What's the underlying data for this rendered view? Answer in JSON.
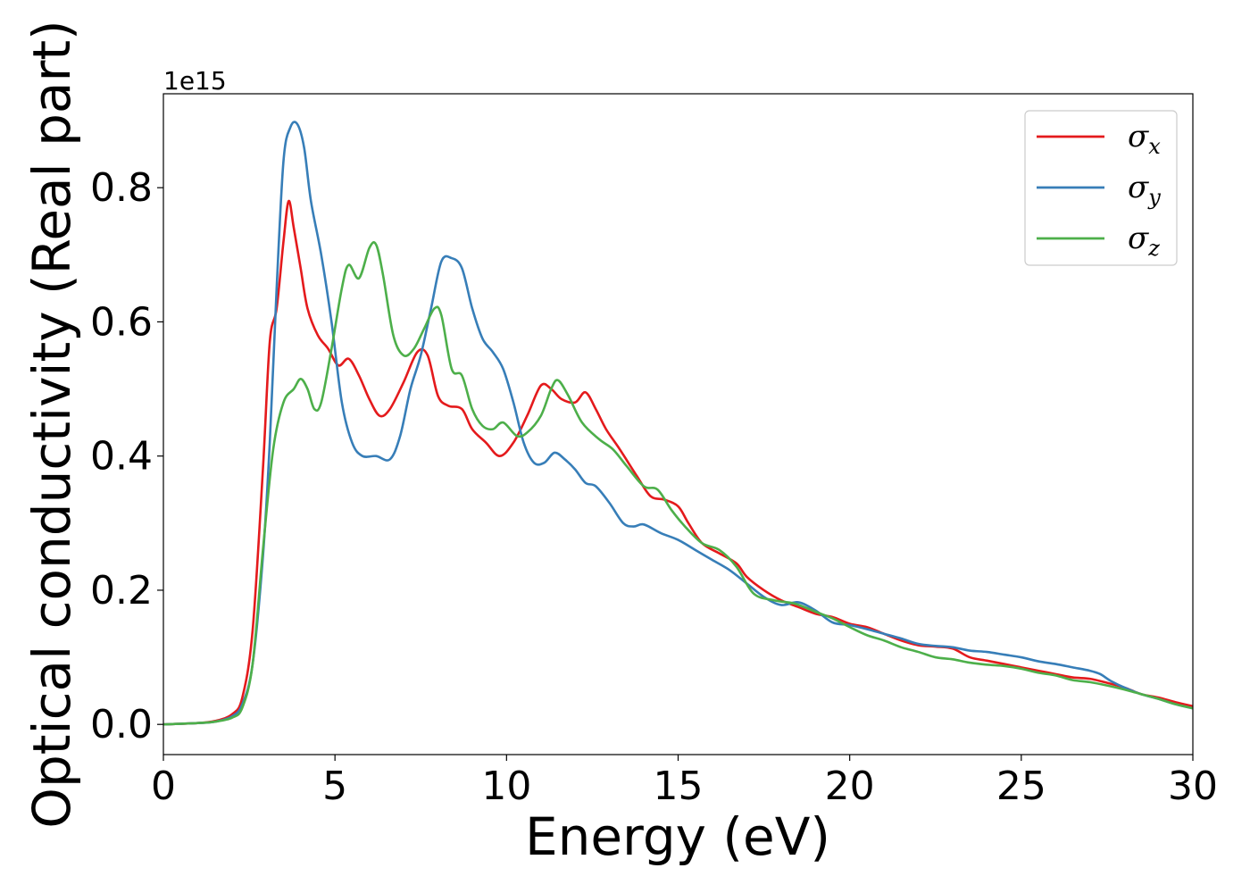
{
  "chart_data": {
    "type": "line",
    "xlabel": "Energy (eV)",
    "ylabel": "Optical conductivity (Real part)",
    "y_offset_label": "1e15",
    "xlim": [
      0,
      30
    ],
    "ylim": [
      -0.045,
      0.94
    ],
    "x_ticks": [
      0,
      5,
      10,
      15,
      20,
      25,
      30
    ],
    "y_ticks": [
      0.0,
      0.2,
      0.4,
      0.6,
      0.8
    ],
    "y_tick_labels": [
      "0.0",
      "0.2",
      "0.4",
      "0.6",
      "0.8"
    ],
    "grid": false,
    "legend_position": "top-right",
    "series": [
      {
        "name": "σ",
        "subscript": "x",
        "color": "#e41a1c",
        "points": [
          [
            0,
            0
          ],
          [
            1,
            0.002
          ],
          [
            1.5,
            0.005
          ],
          [
            2,
            0.015
          ],
          [
            2.3,
            0.04
          ],
          [
            2.6,
            0.14
          ],
          [
            2.9,
            0.38
          ],
          [
            3.1,
            0.57
          ],
          [
            3.3,
            0.62
          ],
          [
            3.5,
            0.72
          ],
          [
            3.65,
            0.78
          ],
          [
            3.8,
            0.74
          ],
          [
            4,
            0.68
          ],
          [
            4.2,
            0.62
          ],
          [
            4.5,
            0.58
          ],
          [
            4.8,
            0.56
          ],
          [
            5.1,
            0.535
          ],
          [
            5.4,
            0.545
          ],
          [
            5.7,
            0.52
          ],
          [
            6,
            0.485
          ],
          [
            6.3,
            0.46
          ],
          [
            6.6,
            0.47
          ],
          [
            7,
            0.51
          ],
          [
            7.4,
            0.555
          ],
          [
            7.7,
            0.55
          ],
          [
            8,
            0.49
          ],
          [
            8.3,
            0.475
          ],
          [
            8.7,
            0.47
          ],
          [
            9,
            0.44
          ],
          [
            9.4,
            0.42
          ],
          [
            9.8,
            0.4
          ],
          [
            10.2,
            0.42
          ],
          [
            10.6,
            0.46
          ],
          [
            11,
            0.505
          ],
          [
            11.3,
            0.5
          ],
          [
            11.6,
            0.485
          ],
          [
            12,
            0.48
          ],
          [
            12.3,
            0.495
          ],
          [
            12.6,
            0.47
          ],
          [
            12.9,
            0.44
          ],
          [
            13.3,
            0.41
          ],
          [
            13.8,
            0.37
          ],
          [
            14.2,
            0.34
          ],
          [
            14.6,
            0.335
          ],
          [
            15,
            0.325
          ],
          [
            15.3,
            0.3
          ],
          [
            15.7,
            0.27
          ],
          [
            16.2,
            0.255
          ],
          [
            16.7,
            0.24
          ],
          [
            17,
            0.22
          ],
          [
            17.5,
            0.2
          ],
          [
            18,
            0.185
          ],
          [
            18.5,
            0.175
          ],
          [
            19,
            0.165
          ],
          [
            19.5,
            0.16
          ],
          [
            20,
            0.15
          ],
          [
            20.5,
            0.145
          ],
          [
            21,
            0.135
          ],
          [
            21.5,
            0.125
          ],
          [
            22,
            0.118
          ],
          [
            22.5,
            0.116
          ],
          [
            23,
            0.113
          ],
          [
            23.5,
            0.1
          ],
          [
            24,
            0.095
          ],
          [
            24.5,
            0.09
          ],
          [
            25,
            0.085
          ],
          [
            25.5,
            0.08
          ],
          [
            26,
            0.075
          ],
          [
            26.5,
            0.07
          ],
          [
            27,
            0.068
          ],
          [
            27.5,
            0.062
          ],
          [
            28,
            0.055
          ],
          [
            28.5,
            0.045
          ],
          [
            29,
            0.04
          ],
          [
            29.5,
            0.033
          ],
          [
            30,
            0.027
          ]
        ]
      },
      {
        "name": "σ",
        "subscript": "y",
        "color": "#377eb8",
        "points": [
          [
            0,
            0
          ],
          [
            1,
            0.002
          ],
          [
            1.5,
            0.004
          ],
          [
            2,
            0.012
          ],
          [
            2.3,
            0.03
          ],
          [
            2.6,
            0.09
          ],
          [
            2.9,
            0.25
          ],
          [
            3.1,
            0.42
          ],
          [
            3.3,
            0.65
          ],
          [
            3.5,
            0.84
          ],
          [
            3.7,
            0.89
          ],
          [
            3.9,
            0.895
          ],
          [
            4.1,
            0.86
          ],
          [
            4.3,
            0.78
          ],
          [
            4.6,
            0.7
          ],
          [
            4.9,
            0.6
          ],
          [
            5.2,
            0.48
          ],
          [
            5.5,
            0.42
          ],
          [
            5.8,
            0.4
          ],
          [
            6.2,
            0.4
          ],
          [
            6.6,
            0.395
          ],
          [
            6.9,
            0.43
          ],
          [
            7.2,
            0.5
          ],
          [
            7.5,
            0.55
          ],
          [
            7.8,
            0.62
          ],
          [
            8.1,
            0.69
          ],
          [
            8.4,
            0.695
          ],
          [
            8.7,
            0.68
          ],
          [
            9,
            0.62
          ],
          [
            9.3,
            0.575
          ],
          [
            9.6,
            0.555
          ],
          [
            9.9,
            0.53
          ],
          [
            10.2,
            0.48
          ],
          [
            10.5,
            0.42
          ],
          [
            10.8,
            0.39
          ],
          [
            11.1,
            0.39
          ],
          [
            11.4,
            0.405
          ],
          [
            11.7,
            0.395
          ],
          [
            12,
            0.38
          ],
          [
            12.3,
            0.36
          ],
          [
            12.6,
            0.355
          ],
          [
            13,
            0.33
          ],
          [
            13.4,
            0.3
          ],
          [
            13.7,
            0.295
          ],
          [
            14,
            0.298
          ],
          [
            14.5,
            0.285
          ],
          [
            15,
            0.275
          ],
          [
            15.5,
            0.26
          ],
          [
            16,
            0.245
          ],
          [
            16.5,
            0.23
          ],
          [
            17,
            0.21
          ],
          [
            17.5,
            0.19
          ],
          [
            18,
            0.178
          ],
          [
            18.5,
            0.182
          ],
          [
            19,
            0.17
          ],
          [
            19.5,
            0.152
          ],
          [
            20,
            0.148
          ],
          [
            20.5,
            0.142
          ],
          [
            21,
            0.135
          ],
          [
            21.5,
            0.128
          ],
          [
            22,
            0.12
          ],
          [
            22.5,
            0.117
          ],
          [
            23,
            0.115
          ],
          [
            23.5,
            0.11
          ],
          [
            24,
            0.108
          ],
          [
            24.5,
            0.104
          ],
          [
            25,
            0.1
          ],
          [
            25.5,
            0.094
          ],
          [
            26,
            0.09
          ],
          [
            26.5,
            0.085
          ],
          [
            27,
            0.08
          ],
          [
            27.3,
            0.075
          ],
          [
            27.6,
            0.065
          ],
          [
            28,
            0.055
          ],
          [
            28.5,
            0.045
          ],
          [
            29,
            0.038
          ],
          [
            29.5,
            0.03
          ],
          [
            30,
            0.024
          ]
        ]
      },
      {
        "name": "σ",
        "subscript": "z",
        "color": "#4daf4a",
        "points": [
          [
            0,
            0
          ],
          [
            1,
            0.002
          ],
          [
            1.5,
            0.004
          ],
          [
            2,
            0.01
          ],
          [
            2.3,
            0.025
          ],
          [
            2.6,
            0.09
          ],
          [
            2.9,
            0.26
          ],
          [
            3.2,
            0.41
          ],
          [
            3.5,
            0.48
          ],
          [
            3.8,
            0.5
          ],
          [
            4,
            0.515
          ],
          [
            4.2,
            0.5
          ],
          [
            4.4,
            0.47
          ],
          [
            4.6,
            0.48
          ],
          [
            4.9,
            0.56
          ],
          [
            5.2,
            0.65
          ],
          [
            5.4,
            0.685
          ],
          [
            5.7,
            0.665
          ],
          [
            6,
            0.71
          ],
          [
            6.2,
            0.715
          ],
          [
            6.4,
            0.67
          ],
          [
            6.7,
            0.58
          ],
          [
            7,
            0.55
          ],
          [
            7.3,
            0.56
          ],
          [
            7.6,
            0.59
          ],
          [
            7.9,
            0.62
          ],
          [
            8.1,
            0.61
          ],
          [
            8.4,
            0.53
          ],
          [
            8.7,
            0.52
          ],
          [
            9,
            0.47
          ],
          [
            9.3,
            0.445
          ],
          [
            9.6,
            0.44
          ],
          [
            9.9,
            0.45
          ],
          [
            10.3,
            0.43
          ],
          [
            10.6,
            0.435
          ],
          [
            11,
            0.46
          ],
          [
            11.3,
            0.5
          ],
          [
            11.5,
            0.513
          ],
          [
            11.8,
            0.49
          ],
          [
            12.2,
            0.45
          ],
          [
            12.7,
            0.425
          ],
          [
            13.1,
            0.41
          ],
          [
            13.5,
            0.385
          ],
          [
            14,
            0.355
          ],
          [
            14.4,
            0.35
          ],
          [
            14.8,
            0.32
          ],
          [
            15.2,
            0.295
          ],
          [
            15.7,
            0.27
          ],
          [
            16.2,
            0.26
          ],
          [
            16.7,
            0.235
          ],
          [
            17.2,
            0.195
          ],
          [
            17.8,
            0.185
          ],
          [
            18.4,
            0.18
          ],
          [
            19,
            0.168
          ],
          [
            19.5,
            0.158
          ],
          [
            20,
            0.145
          ],
          [
            20.5,
            0.133
          ],
          [
            21,
            0.125
          ],
          [
            21.5,
            0.115
          ],
          [
            22,
            0.108
          ],
          [
            22.5,
            0.1
          ],
          [
            23,
            0.097
          ],
          [
            23.5,
            0.092
          ],
          [
            24,
            0.089
          ],
          [
            24.5,
            0.087
          ],
          [
            25,
            0.083
          ],
          [
            25.5,
            0.077
          ],
          [
            26,
            0.073
          ],
          [
            26.5,
            0.066
          ],
          [
            27,
            0.063
          ],
          [
            27.5,
            0.058
          ],
          [
            28,
            0.052
          ],
          [
            28.5,
            0.045
          ],
          [
            29,
            0.038
          ],
          [
            29.5,
            0.03
          ],
          [
            30,
            0.024
          ]
        ]
      }
    ]
  }
}
